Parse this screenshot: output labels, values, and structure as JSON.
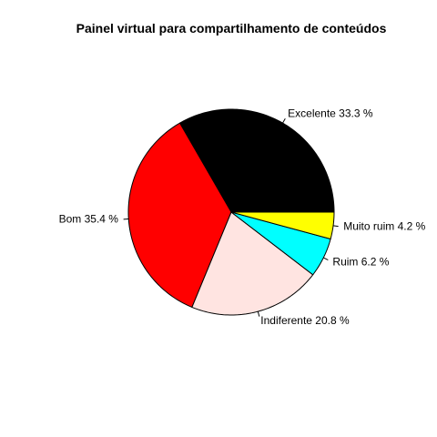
{
  "chart_data": {
    "type": "pie",
    "title": "Painel virtual para compartilhamento de conteúdos",
    "start_angle_deg": 0,
    "direction": "counterclockwise",
    "slices": [
      {
        "label": "Excelente 33.3 %",
        "value": 33.3,
        "color": "#000000"
      },
      {
        "label": "Bom 35.4 %",
        "value": 35.4,
        "color": "#ff0000"
      },
      {
        "label": "Indiferente 20.8 %",
        "value": 20.8,
        "color": "#ffe4e1"
      },
      {
        "label": "Ruim 6.2 %",
        "value": 6.2,
        "color": "#00ffff"
      },
      {
        "label": "Muito ruim 4.2 %",
        "value": 4.2,
        "color": "#ffff00"
      }
    ]
  }
}
